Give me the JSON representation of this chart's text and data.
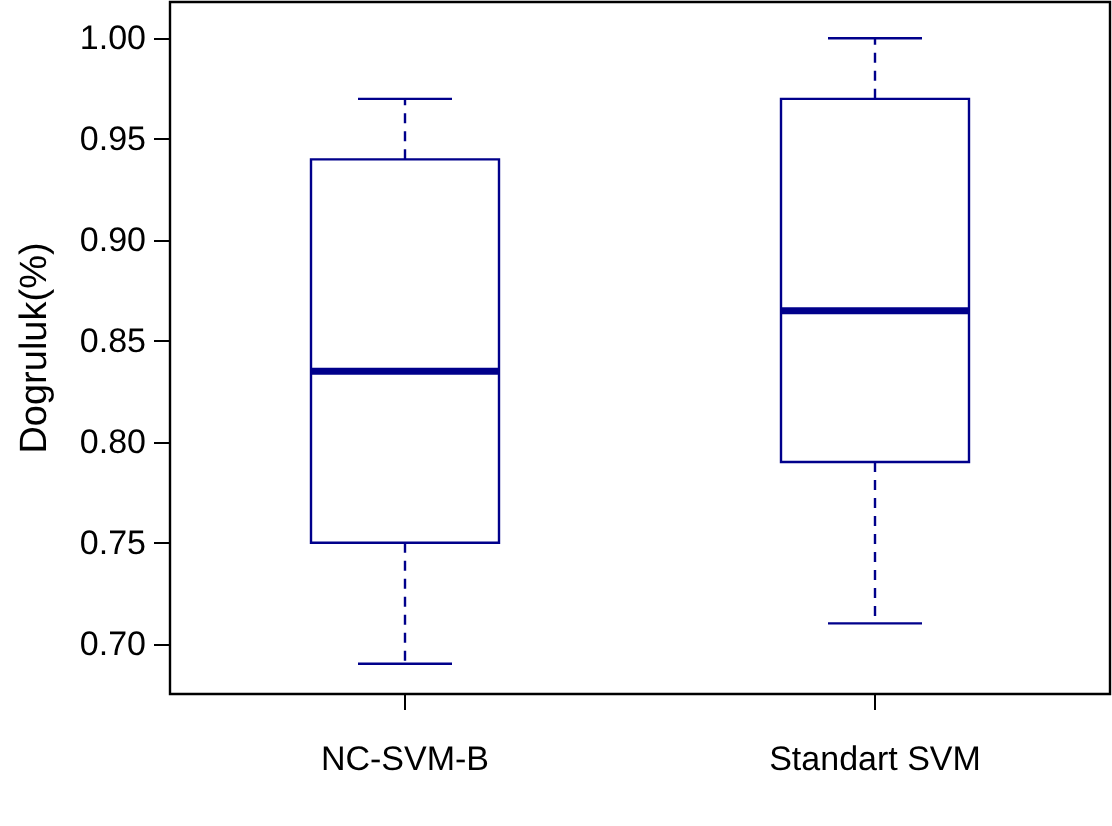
{
  "chart_data": {
    "type": "box",
    "ylabel": "Dogruluk(%)",
    "categories": [
      "NC-SVM-B",
      "Standart SVM"
    ],
    "boxes": [
      {
        "low": 0.69,
        "q1": 0.75,
        "median": 0.835,
        "q3": 0.94,
        "high": 0.97
      },
      {
        "low": 0.71,
        "q1": 0.79,
        "median": 0.865,
        "q3": 0.97,
        "high": 1.0
      }
    ],
    "color": "#00008b",
    "line_style": "dashed",
    "grid": false,
    "ylim": [
      0.675,
      1.018
    ],
    "yticks": [
      {
        "value": 0.7,
        "label": "0.70"
      },
      {
        "value": 0.75,
        "label": "0.75"
      },
      {
        "value": 0.8,
        "label": "0.80"
      },
      {
        "value": 0.85,
        "label": "0.85"
      },
      {
        "value": 0.9,
        "label": "0.90"
      },
      {
        "value": 0.95,
        "label": "0.95"
      },
      {
        "value": 1.0,
        "label": "1.00"
      }
    ]
  }
}
